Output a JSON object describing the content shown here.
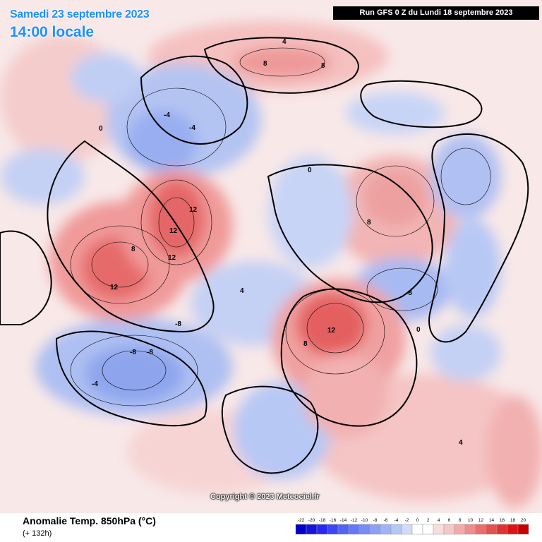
{
  "header": {
    "date": "Samedi 23 septembre 2023",
    "time": "14:00 locale",
    "run": "Run GFS 0 Z du Lundi 18 septembre 2023"
  },
  "footer": {
    "title": "Anomalie Temp. 850hPa (°C)",
    "lead": "(+ 132h)",
    "copyright": "Copyright © 2023 Meteociel.fr"
  },
  "legend": {
    "labels": [
      "-22",
      "-20",
      "-18",
      "-16",
      "-14",
      "-12",
      "-10",
      "-8",
      "-6",
      "-4",
      "-2",
      "0",
      "2",
      "4",
      "6",
      "8",
      "10",
      "12",
      "14",
      "16",
      "18",
      "20"
    ],
    "colors": [
      "#0000c8",
      "#1414dc",
      "#2828f0",
      "#3c46f5",
      "#5064f5",
      "#6478f5",
      "#788cf5",
      "#8ca0f5",
      "#a0b4f5",
      "#b4c8f5",
      "#d2dcfa",
      "#ffffff",
      "#ffffff",
      "#fadcdc",
      "#f5c8c8",
      "#f5aaaa",
      "#f08c8c",
      "#eb6e6e",
      "#e65050",
      "#e13232",
      "#dc1414",
      "#c80000"
    ]
  },
  "map": {
    "contour_labels": [
      "12",
      "12",
      "12",
      "12",
      "12",
      "8",
      "8",
      "8",
      "8",
      "8",
      "-8",
      "-8",
      "-8",
      "-8",
      "4",
      "4",
      "4",
      "-4",
      "-4",
      "-4",
      "0",
      "0",
      "0"
    ]
  }
}
